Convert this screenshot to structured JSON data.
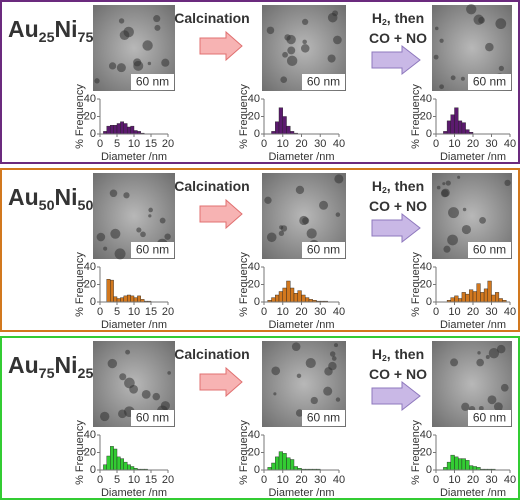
{
  "panels": [
    {
      "title": [
        "Au",
        "25",
        "Ni",
        "75"
      ],
      "color": "#6b2a7e",
      "steps": [
        {
          "lines": [
            [
              "Calcination"
            ]
          ],
          "color": "#e8191c"
        },
        {
          "lines": [
            [
              "H",
              "2",
              ", then"
            ],
            [
              "CO + NO"
            ]
          ],
          "color": "#7030a0"
        }
      ],
      "scale_bars": [
        "60 nm",
        "60 nm",
        "60 nm"
      ]
    },
    {
      "title": [
        "Au",
        "50",
        "Ni",
        "50"
      ],
      "color": "#d2781e",
      "steps": [
        {
          "lines": [
            [
              "Calcination"
            ]
          ],
          "color": "#e8191c"
        },
        {
          "lines": [
            [
              "H",
              "2",
              ", then"
            ],
            [
              "CO + NO"
            ]
          ],
          "color": "#7030a0"
        }
      ],
      "scale_bars": [
        "60 nm",
        "60 nm",
        "60 nm"
      ]
    },
    {
      "title": [
        "Au",
        "75",
        "Ni",
        "25"
      ],
      "color": "#33cc33",
      "steps": [
        {
          "lines": [
            [
              "Calcination"
            ]
          ],
          "color": "#e8191c"
        },
        {
          "lines": [
            [
              "H",
              "2",
              ", then"
            ],
            [
              "CO + NO"
            ]
          ],
          "color": "#7030a0"
        }
      ],
      "scale_bars": [
        "60 nm",
        "60 nm",
        "60 nm"
      ]
    }
  ],
  "chart_data": [
    {
      "type": "histogram",
      "x_label": "Diameter /nm",
      "y_label": "% Frequency",
      "color": "#5b1a6e",
      "bins": [
        1,
        2,
        3,
        4,
        5,
        6,
        7,
        8,
        9,
        10,
        11,
        12,
        13
      ],
      "values": [
        3,
        9,
        10,
        10,
        12,
        14,
        12,
        8,
        9,
        4,
        3,
        1
      ],
      "xlim": [
        0,
        20
      ],
      "xticks": [
        0,
        5,
        10,
        15,
        20
      ],
      "ylim": [
        0,
        40
      ],
      "yticks": [
        0,
        20,
        40
      ]
    },
    {
      "type": "histogram",
      "x_label": "Diameter /nm",
      "y_label": "% Frequency",
      "color": "#5b1a6e",
      "bins": [
        4,
        6,
        8,
        10,
        12,
        14,
        16,
        18
      ],
      "values": [
        3,
        14,
        30,
        20,
        9,
        3,
        1
      ],
      "xlim": [
        0,
        40
      ],
      "xticks": [
        0,
        10,
        20,
        30,
        40
      ],
      "ylim": [
        0,
        40
      ],
      "yticks": [
        0,
        20,
        40
      ]
    },
    {
      "type": "histogram",
      "x_label": "Diameter /nm",
      "y_label": "% Frequency",
      "color": "#5b1a6e",
      "bins": [
        4,
        6,
        8,
        10,
        12,
        14,
        16,
        18,
        20
      ],
      "values": [
        3,
        15,
        22,
        30,
        15,
        13,
        5,
        2
      ],
      "xlim": [
        0,
        40
      ],
      "xticks": [
        0,
        10,
        20,
        30,
        40
      ],
      "ylim": [
        0,
        40
      ],
      "yticks": [
        0,
        20,
        40
      ]
    },
    {
      "type": "histogram",
      "x_label": "Diameter /nm",
      "y_label": "% Frequency",
      "color": "#d2781e",
      "bins": [
        2,
        3,
        4,
        5,
        6,
        7,
        8,
        9,
        10,
        11,
        12,
        13,
        14,
        15
      ],
      "values": [
        26,
        25,
        6,
        4,
        5,
        7,
        8,
        7,
        5,
        7,
        3,
        1,
        1
      ],
      "xlim": [
        0,
        20
      ],
      "xticks": [
        0,
        5,
        10,
        15,
        20
      ],
      "ylim": [
        0,
        40
      ],
      "yticks": [
        0,
        20,
        40
      ]
    },
    {
      "type": "histogram",
      "x_label": "Diameter /nm",
      "y_label": "% Frequency",
      "color": "#d2781e",
      "bins": [
        2,
        4,
        6,
        8,
        10,
        12,
        14,
        16,
        18,
        20,
        22,
        24,
        26,
        28,
        30,
        32,
        34
      ],
      "values": [
        2,
        5,
        8,
        12,
        16,
        24,
        16,
        10,
        13,
        8,
        5,
        3,
        2,
        1,
        1,
        1
      ],
      "xlim": [
        0,
        40
      ],
      "xticks": [
        0,
        10,
        20,
        30,
        40
      ],
      "ylim": [
        0,
        40
      ],
      "yticks": [
        0,
        20,
        40
      ]
    },
    {
      "type": "histogram",
      "x_label": "Diameter /nm",
      "y_label": "% Frequency",
      "color": "#d2781e",
      "bins": [
        6,
        8,
        10,
        12,
        14,
        16,
        18,
        20,
        22,
        24,
        26,
        28,
        30,
        32,
        34,
        36,
        38
      ],
      "values": [
        2,
        5,
        7,
        4,
        11,
        9,
        14,
        12,
        21,
        11,
        15,
        24,
        8,
        11,
        4,
        2
      ],
      "xlim": [
        0,
        40
      ],
      "xticks": [
        0,
        10,
        20,
        30,
        40
      ],
      "ylim": [
        0,
        40
      ],
      "yticks": [
        0,
        20,
        40
      ]
    },
    {
      "type": "histogram",
      "x_label": "Diameter /nm",
      "y_label": "% Frequency",
      "color": "#33cc33",
      "bins": [
        1,
        2,
        3,
        4,
        5,
        6,
        7,
        8,
        9,
        10,
        11,
        12,
        13,
        14
      ],
      "values": [
        6,
        16,
        27,
        24,
        15,
        13,
        9,
        6,
        4,
        2,
        1,
        1,
        1
      ],
      "xlim": [
        0,
        20
      ],
      "xticks": [
        0,
        5,
        10,
        15,
        20
      ],
      "ylim": [
        0,
        40
      ],
      "yticks": [
        0,
        20,
        40
      ]
    },
    {
      "type": "histogram",
      "x_label": "Diameter /nm",
      "y_label": "% Frequency",
      "color": "#33cc33",
      "bins": [
        2,
        4,
        6,
        8,
        10,
        12,
        14,
        16,
        18,
        20,
        22,
        24,
        26,
        28,
        30
      ],
      "values": [
        3,
        8,
        15,
        21,
        19,
        14,
        12,
        4,
        2,
        1,
        1,
        1,
        1,
        1
      ],
      "xlim": [
        0,
        40
      ],
      "xticks": [
        0,
        10,
        20,
        30,
        40
      ],
      "ylim": [
        0,
        40
      ],
      "yticks": [
        0,
        20,
        40
      ]
    },
    {
      "type": "histogram",
      "x_label": "Diameter /nm",
      "y_label": "% Frequency",
      "color": "#33cc33",
      "bins": [
        4,
        6,
        8,
        10,
        12,
        14,
        16,
        18,
        20,
        22,
        24,
        26,
        28,
        30,
        32
      ],
      "values": [
        3,
        9,
        17,
        15,
        13,
        13,
        11,
        5,
        4,
        3,
        1,
        1,
        1,
        1
      ],
      "xlim": [
        0,
        40
      ],
      "xticks": [
        0,
        10,
        20,
        30,
        40
      ],
      "ylim": [
        0,
        40
      ],
      "yticks": [
        0,
        20,
        40
      ]
    }
  ]
}
